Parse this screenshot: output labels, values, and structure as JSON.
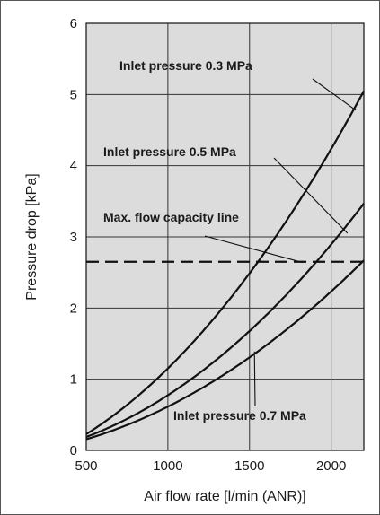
{
  "chart_data": {
    "type": "line",
    "xlabel": "Air flow rate [l/min (ANR)]",
    "ylabel": "Pressure drop [kPa]",
    "xlim": [
      500,
      2200
    ],
    "ylim": [
      0,
      6
    ],
    "x_ticks": [
      500,
      1000,
      1500,
      2000
    ],
    "y_ticks": [
      0,
      1,
      2,
      3,
      4,
      5,
      6
    ],
    "grid": true,
    "background_color": "#dcdcdc",
    "line_color": "#111111",
    "series": [
      {
        "name": "Inlet pressure 0.3 MPa",
        "x": [
          500,
          750,
          1000,
          1250,
          1500,
          1750,
          2000,
          2200
        ],
        "y": [
          0.26,
          0.62,
          1.12,
          1.75,
          2.5,
          3.34,
          4.28,
          5.0
        ]
      },
      {
        "name": "Inlet pressure 0.5 MPa",
        "x": [
          500,
          750,
          1000,
          1250,
          1500,
          1750,
          2000,
          2200
        ],
        "y": [
          0.2,
          0.44,
          0.76,
          1.18,
          1.68,
          2.25,
          2.93,
          3.44
        ]
      },
      {
        "name": "Inlet pressure 0.7 MPa",
        "x": [
          500,
          750,
          1000,
          1250,
          1500,
          1750,
          2000,
          2200
        ],
        "y": [
          0.17,
          0.35,
          0.6,
          0.92,
          1.32,
          1.75,
          2.25,
          2.65
        ]
      }
    ],
    "reference_lines": [
      {
        "name": "Max. flow capacity line",
        "y": 2.65,
        "style": "dashed"
      }
    ],
    "annotations": [
      {
        "text": "Inlet pressure 0.3 MPa",
        "series": 0
      },
      {
        "text": "Inlet pressure 0.5 MPa",
        "series": 1
      },
      {
        "text": "Max. flow capacity line",
        "series": "reference"
      },
      {
        "text": "Inlet pressure 0.7 MPa",
        "series": 2
      }
    ]
  }
}
